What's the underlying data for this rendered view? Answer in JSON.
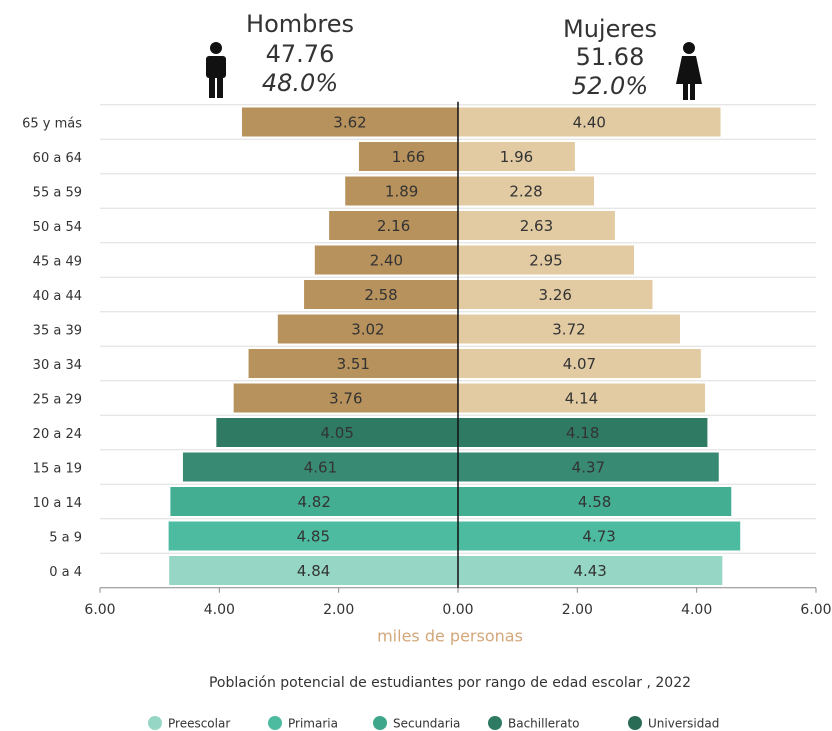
{
  "chart_data": {
    "type": "pyramid",
    "title": "Población potencial de estudiantes por rango de edad escolar , 2022",
    "x_label": "miles de personas",
    "header": [
      {
        "name": "Hombres",
        "total": "47.76",
        "share": "48.0%"
      },
      {
        "name": "Mujeres",
        "total": "51.68",
        "share": "52.0%"
      }
    ],
    "categories": [
      "65 y más",
      "60 a 64",
      "55 a 59",
      "50 a 54",
      "45 a 49",
      "40 a 44",
      "35 a 39",
      "30 a 34",
      "25 a 29",
      "20 a 24",
      "15 a 19",
      "10 a 14",
      "5 a 9",
      "0 a 4"
    ],
    "series": [
      {
        "name": "Hombres",
        "side": "left",
        "values": [
          3.62,
          1.66,
          1.89,
          2.16,
          2.4,
          2.58,
          3.02,
          3.51,
          3.76,
          4.05,
          4.61,
          4.82,
          4.85,
          4.84
        ],
        "value_labels": [
          "3.62",
          "1.66",
          "1.89",
          "2.16",
          "2.40",
          "2.58",
          "3.02",
          "3.51",
          "3.76",
          "4.05",
          "4.61",
          "4.82",
          "4.85",
          "4.84"
        ],
        "colors": [
          "#b8925c",
          "#b8925c",
          "#b8925c",
          "#b8925c",
          "#b8925c",
          "#b8925c",
          "#b8925c",
          "#b8925c",
          "#b8925c",
          "#2f7a63",
          "#388a72",
          "#44ae93",
          "#4dbb9f",
          "#95d6c4"
        ]
      },
      {
        "name": "Mujeres",
        "side": "right",
        "values": [
          4.4,
          1.96,
          2.28,
          2.63,
          2.95,
          3.26,
          3.72,
          4.07,
          4.14,
          4.18,
          4.37,
          4.58,
          4.73,
          4.43
        ],
        "value_labels": [
          "4.40",
          "1.96",
          "2.28",
          "2.63",
          "2.95",
          "3.26",
          "3.72",
          "4.07",
          "4.14",
          "4.18",
          "4.37",
          "4.58",
          "4.73",
          "4.43"
        ],
        "colors": [
          "#e2cba2",
          "#e2cba2",
          "#e2cba2",
          "#e2cba2",
          "#e2cba2",
          "#e2cba2",
          "#e2cba2",
          "#e2cba2",
          "#e2cba2",
          "#2f7a63",
          "#388a72",
          "#44ae93",
          "#4dbb9f",
          "#95d6c4"
        ]
      }
    ],
    "legend": [
      {
        "name": "Preescolar",
        "color": "#95d6c4"
      },
      {
        "name": "Primaria",
        "color": "#4dbb9f"
      },
      {
        "name": "Secundaria",
        "color": "#3ea68b"
      },
      {
        "name": "Bachillerato",
        "color": "#2f7a63"
      },
      {
        "name": "Universidad",
        "color": "#2a6b56"
      }
    ],
    "xlim": [
      -6,
      6
    ],
    "xticks": [
      {
        "value": -6,
        "label": "6.00"
      },
      {
        "value": -4,
        "label": "4.00"
      },
      {
        "value": -2,
        "label": "2.00"
      },
      {
        "value": 0,
        "label": "0.00"
      },
      {
        "value": 2,
        "label": "2.00"
      },
      {
        "value": 4,
        "label": "4.00"
      },
      {
        "value": 6,
        "label": "6.00"
      }
    ],
    "grid": true
  }
}
